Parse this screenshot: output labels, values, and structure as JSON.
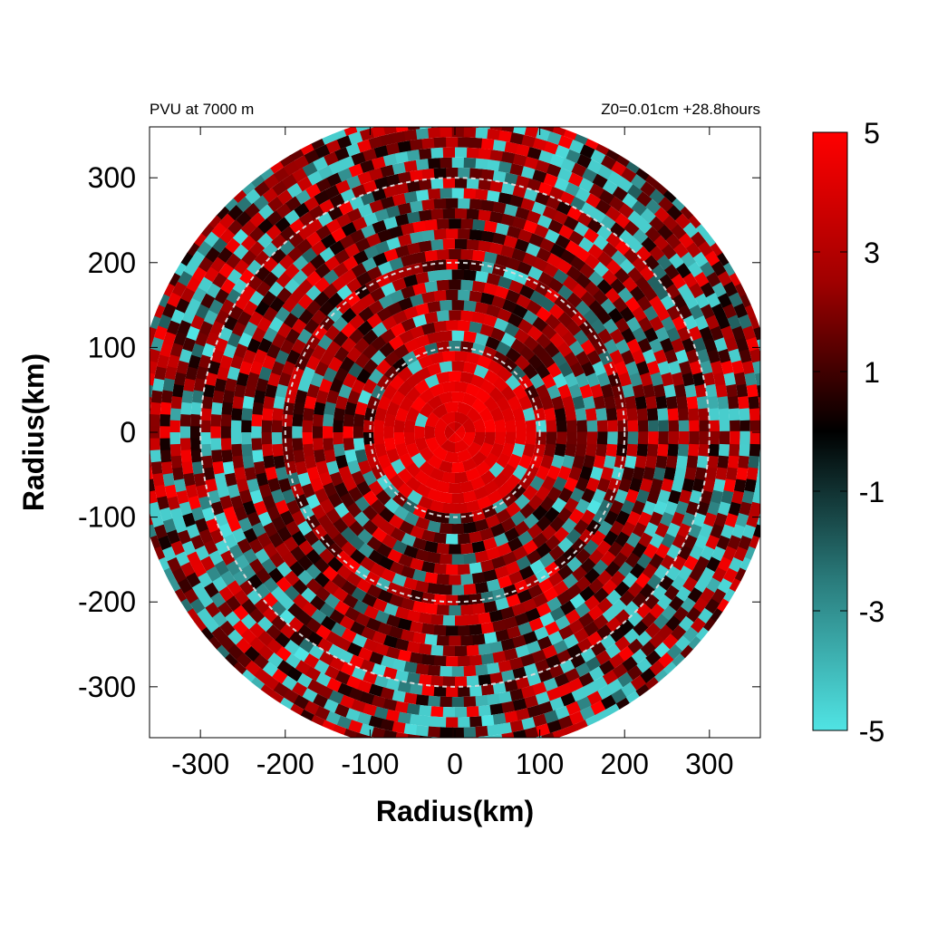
{
  "chart_data": {
    "type": "heatmap",
    "title_left": "PVU at  7000 m",
    "title_right": "Z0=0.01cm  +28.8hours",
    "xlabel": "Radius(km)",
    "ylabel": "Radius(km)",
    "xlim": [
      -360,
      360
    ],
    "ylim": [
      -360,
      360
    ],
    "xticks": [
      -300,
      -200,
      -100,
      0,
      100,
      200,
      300
    ],
    "yticks": [
      300,
      200,
      100,
      0,
      -100,
      -200,
      -300
    ],
    "domain_radius_km": 380,
    "reference_circles_km": [
      100,
      200,
      300
    ],
    "colorbar": {
      "min": -5,
      "max": 5,
      "ticks": [
        5,
        3,
        1,
        -1,
        -3,
        -5
      ],
      "stops": [
        {
          "value": 5,
          "color": "#ff0000"
        },
        {
          "value": 0,
          "color": "#000000"
        },
        {
          "value": -5,
          "color": "#50e4e4"
        }
      ]
    },
    "description_pattern": {
      "core_radius_km": 90,
      "core_value": 5,
      "background_value": 1.5,
      "noise_amplitude": 4
    }
  }
}
